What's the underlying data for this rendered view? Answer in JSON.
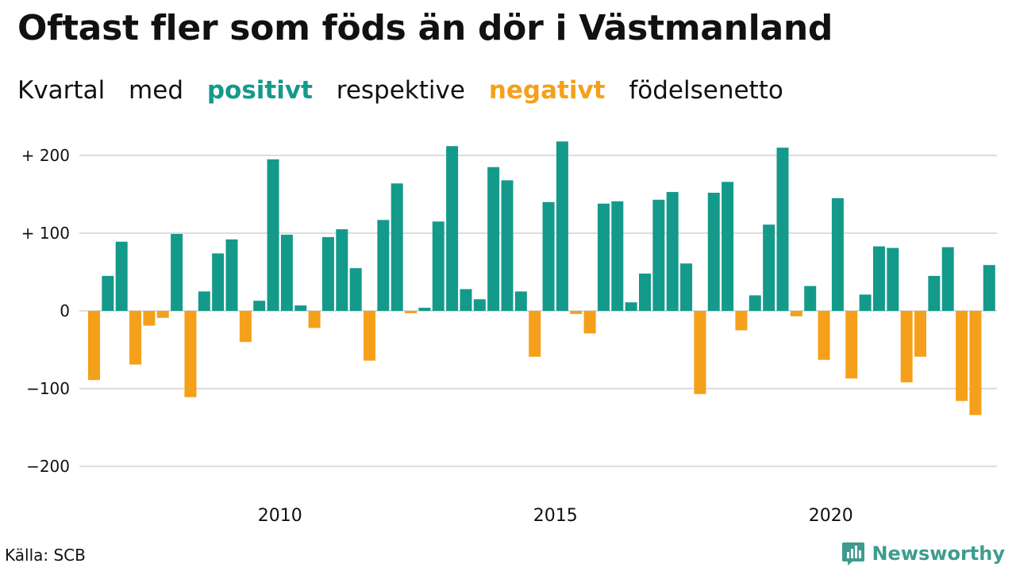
{
  "title": "Oftast fler som föds än dör i Västmanland",
  "subtitle": {
    "part1": "Kvartal",
    "part2": "med",
    "positive": "positivt",
    "part3": "respektive",
    "negative": "negativt",
    "part4": "födelsenetto"
  },
  "colors": {
    "positive": "#149a8a",
    "negative": "#f5a01a",
    "grid": "#dddddd",
    "text": "#111111"
  },
  "source": "Källa: SCB",
  "brand": {
    "name": "Newsworthy",
    "icon": "newsworthy-logo-icon"
  },
  "chart_data": {
    "type": "bar",
    "ylim": [
      -220,
      220
    ],
    "yticks": [
      {
        "value": 200,
        "label": "+ 200"
      },
      {
        "value": 100,
        "label": "+ 100"
      },
      {
        "value": 0,
        "label": "0"
      },
      {
        "value": -100,
        "label": "−100"
      },
      {
        "value": -200,
        "label": "−200"
      }
    ],
    "xticks": [
      {
        "year": 2010,
        "label": "2010"
      },
      {
        "year": 2015,
        "label": "2015"
      },
      {
        "year": 2020,
        "label": "2020"
      }
    ],
    "start": {
      "year": 2007,
      "quarter": 1
    },
    "values": [
      -89,
      45,
      89,
      -69,
      -19,
      -9,
      99,
      -111,
      25,
      74,
      92,
      -40,
      13,
      195,
      98,
      7,
      -22,
      95,
      105,
      55,
      -64,
      117,
      164,
      -3,
      4,
      115,
      212,
      28,
      15,
      185,
      168,
      25,
      -59,
      140,
      218,
      -4,
      -29,
      138,
      141,
      11,
      48,
      143,
      153,
      61,
      -107,
      152,
      166,
      -25,
      20,
      111,
      210,
      -7,
      32,
      -63,
      145,
      -87,
      21,
      83,
      81,
      -92,
      -59,
      45,
      82,
      -116,
      -134,
      59
    ]
  }
}
